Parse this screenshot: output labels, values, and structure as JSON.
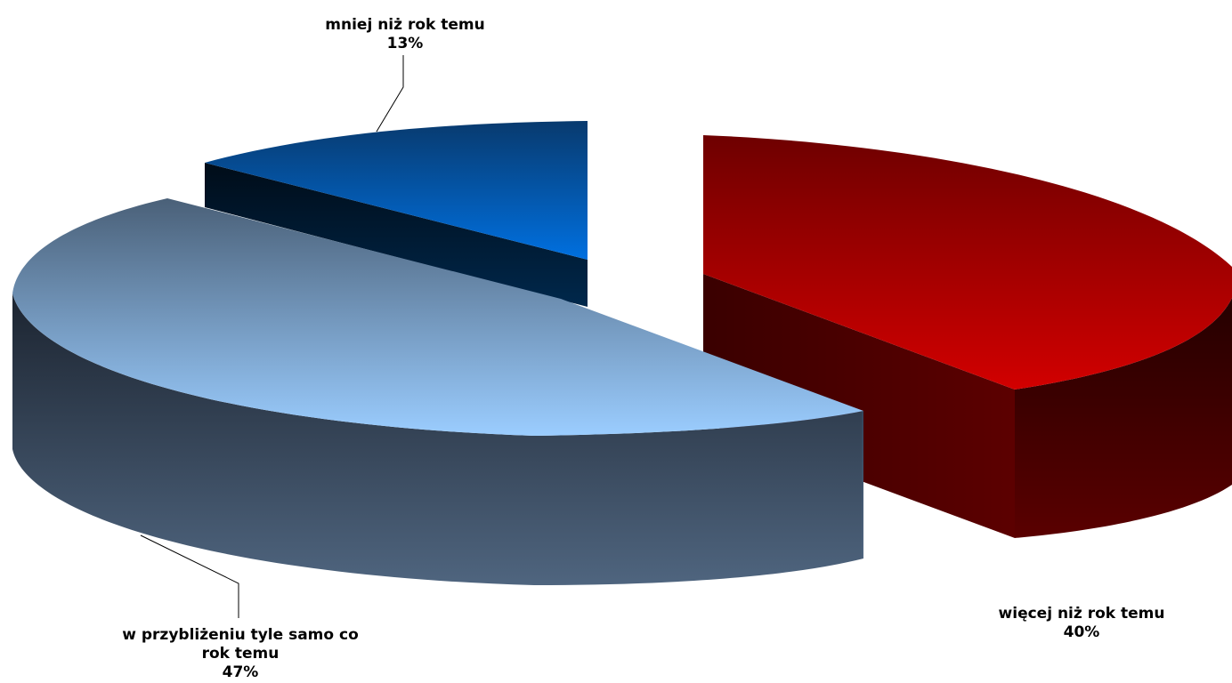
{
  "chart_data": {
    "type": "pie",
    "style": "3d-exploded",
    "slices": [
      {
        "name": "więcej niż rok temu",
        "value": 40,
        "value_label": "40%",
        "color": "#c00000"
      },
      {
        "name": "w przybliżeniu tyle samo co rok temu",
        "value": 47,
        "value_label": "47%",
        "color": "#93c5f7"
      },
      {
        "name": "mniej niż rok temu",
        "value": 13,
        "value_label": "13%",
        "color": "#0066cc"
      }
    ]
  },
  "labels": {
    "more": {
      "line1": "więcej niż rok temu",
      "pct": "40%"
    },
    "same": {
      "line1": "w przybliżeniu tyle samo co",
      "line2": "rok temu",
      "pct": "47%"
    },
    "less": {
      "line1": "mniej niż rok temu",
      "pct": "13%"
    }
  }
}
